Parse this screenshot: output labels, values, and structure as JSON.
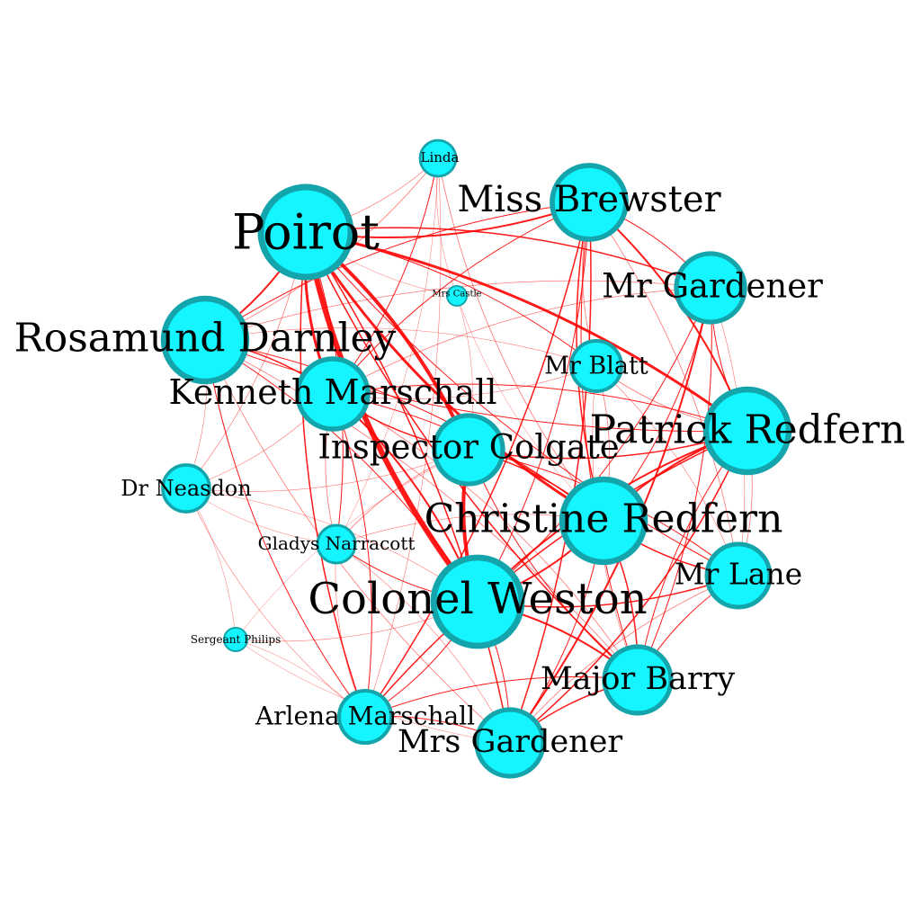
{
  "colors": {
    "background": "#ffffff",
    "node_fill": "#14f5ff",
    "node_stroke": "#13a5ab",
    "edge": "#ff0000",
    "label": "#000000"
  },
  "nodes": [
    {
      "id": "poirot",
      "label": "Poirot"
    },
    {
      "id": "miss-brewster",
      "label": "Miss Brewster"
    },
    {
      "id": "linda",
      "label": "Linda"
    },
    {
      "id": "mr-gardener",
      "label": "Mr Gardener"
    },
    {
      "id": "mrs-castle",
      "label": "Mrs Castle"
    },
    {
      "id": "rosamund-darnley",
      "label": "Rosamund Darnley"
    },
    {
      "id": "mr-blatt",
      "label": "Mr Blatt"
    },
    {
      "id": "kenneth-marschall",
      "label": "Kenneth Marschall"
    },
    {
      "id": "patrick-redfern",
      "label": "Patrick Redfern"
    },
    {
      "id": "inspector-colgate",
      "label": "Inspector Colgate"
    },
    {
      "id": "dr-neasdon",
      "label": "Dr Neasdon"
    },
    {
      "id": "christine-redfern",
      "label": "Christine Redfern"
    },
    {
      "id": "gladys-narracott",
      "label": "Gladys Narracott"
    },
    {
      "id": "mr-lane",
      "label": "Mr Lane"
    },
    {
      "id": "colonel-weston",
      "label": "Colonel Weston"
    },
    {
      "id": "sergeant-philips",
      "label": "Sergeant Philips"
    },
    {
      "id": "major-barry",
      "label": "Major Barry"
    },
    {
      "id": "arlena-marschall",
      "label": "Arlena Marschall"
    },
    {
      "id": "mrs-gardener",
      "label": "Mrs Gardener"
    }
  ],
  "edges": [
    {
      "source": "poirot",
      "target": "colonel-weston",
      "weight": 6
    },
    {
      "source": "poirot",
      "target": "inspector-colgate",
      "weight": 4
    },
    {
      "source": "poirot",
      "target": "christine-redfern",
      "weight": 3
    },
    {
      "source": "poirot",
      "target": "patrick-redfern",
      "weight": 3
    },
    {
      "source": "poirot",
      "target": "kenneth-marschall",
      "weight": 3
    },
    {
      "source": "poirot",
      "target": "rosamund-darnley",
      "weight": 2
    },
    {
      "source": "poirot",
      "target": "miss-brewster",
      "weight": 2
    },
    {
      "source": "poirot",
      "target": "mr-gardener",
      "weight": 1.5
    },
    {
      "source": "poirot",
      "target": "major-barry",
      "weight": 1.5
    },
    {
      "source": "poirot",
      "target": "mrs-gardener",
      "weight": 1.5
    },
    {
      "source": "poirot",
      "target": "arlena-marschall",
      "weight": 1.5
    },
    {
      "source": "poirot",
      "target": "gladys-narracott",
      "weight": 1
    },
    {
      "source": "poirot",
      "target": "mr-lane",
      "weight": 1
    },
    {
      "source": "poirot",
      "target": "mr-blatt",
      "weight": 1
    },
    {
      "source": "poirot",
      "target": "linda",
      "weight": 0.7
    },
    {
      "source": "poirot",
      "target": "dr-neasdon",
      "weight": 0.7
    },
    {
      "source": "poirot",
      "target": "mrs-castle",
      "weight": 0.5
    },
    {
      "source": "colonel-weston",
      "target": "inspector-colgate",
      "weight": 4
    },
    {
      "source": "colonel-weston",
      "target": "christine-redfern",
      "weight": 2
    },
    {
      "source": "colonel-weston",
      "target": "patrick-redfern",
      "weight": 2
    },
    {
      "source": "colonel-weston",
      "target": "kenneth-marschall",
      "weight": 2
    },
    {
      "source": "colonel-weston",
      "target": "major-barry",
      "weight": 2
    },
    {
      "source": "colonel-weston",
      "target": "mr-lane",
      "weight": 1.5
    },
    {
      "source": "colonel-weston",
      "target": "gladys-narracott",
      "weight": 1
    },
    {
      "source": "colonel-weston",
      "target": "mr-gardener",
      "weight": 1
    },
    {
      "source": "colonel-weston",
      "target": "mrs-gardener",
      "weight": 1
    },
    {
      "source": "colonel-weston",
      "target": "miss-brewster",
      "weight": 1
    },
    {
      "source": "colonel-weston",
      "target": "sergeant-philips",
      "weight": 0.6
    },
    {
      "source": "colonel-weston",
      "target": "dr-neasdon",
      "weight": 0.6
    },
    {
      "source": "colonel-weston",
      "target": "arlena-marschall",
      "weight": 1
    },
    {
      "source": "colonel-weston",
      "target": "rosamund-darnley",
      "weight": 1
    },
    {
      "source": "inspector-colgate",
      "target": "christine-redfern",
      "weight": 1.5
    },
    {
      "source": "inspector-colgate",
      "target": "patrick-redfern",
      "weight": 1.5
    },
    {
      "source": "inspector-colgate",
      "target": "kenneth-marschall",
      "weight": 1.5
    },
    {
      "source": "inspector-colgate",
      "target": "major-barry",
      "weight": 1
    },
    {
      "source": "inspector-colgate",
      "target": "mr-lane",
      "weight": 1
    },
    {
      "source": "inspector-colgate",
      "target": "gladys-narracott",
      "weight": 0.8
    },
    {
      "source": "inspector-colgate",
      "target": "dr-neasdon",
      "weight": 0.6
    },
    {
      "source": "inspector-colgate",
      "target": "sergeant-philips",
      "weight": 0.5
    },
    {
      "source": "miss-brewster",
      "target": "patrick-redfern",
      "weight": 2
    },
    {
      "source": "miss-brewster",
      "target": "christine-redfern",
      "weight": 1.5
    },
    {
      "source": "miss-brewster",
      "target": "mr-gardener",
      "weight": 1
    },
    {
      "source": "miss-brewster",
      "target": "rosamund-darnley",
      "weight": 1
    },
    {
      "source": "miss-brewster",
      "target": "mrs-gardener",
      "weight": 1.5
    },
    {
      "source": "miss-brewster",
      "target": "kenneth-marschall",
      "weight": 1
    },
    {
      "source": "miss-brewster",
      "target": "arlena-marschall",
      "weight": 1.5
    },
    {
      "source": "miss-brewster",
      "target": "major-barry",
      "weight": 1
    },
    {
      "source": "miss-brewster",
      "target": "mr-lane",
      "weight": 0.8
    },
    {
      "source": "miss-brewster",
      "target": "mr-blatt",
      "weight": 0.8
    },
    {
      "source": "mr-gardener",
      "target": "mrs-gardener",
      "weight": 2
    },
    {
      "source": "mr-gardener",
      "target": "patrick-redfern",
      "weight": 1
    },
    {
      "source": "mr-gardener",
      "target": "christine-redfern",
      "weight": 1
    },
    {
      "source": "mr-gardener",
      "target": "rosamund-darnley",
      "weight": 0.8
    },
    {
      "source": "mr-gardener",
      "target": "major-barry",
      "weight": 1
    },
    {
      "source": "mr-gardener",
      "target": "kenneth-marschall",
      "weight": 0.8
    },
    {
      "source": "mr-gardener",
      "target": "mr-lane",
      "weight": 0.6
    },
    {
      "source": "patrick-redfern",
      "target": "christine-redfern",
      "weight": 2
    },
    {
      "source": "patrick-redfern",
      "target": "rosamund-darnley",
      "weight": 1
    },
    {
      "source": "patrick-redfern",
      "target": "major-barry",
      "weight": 1
    },
    {
      "source": "patrick-redfern",
      "target": "mrs-gardener",
      "weight": 1.5
    },
    {
      "source": "patrick-redfern",
      "target": "arlena-marschall",
      "weight": 1.5
    },
    {
      "source": "patrick-redfern",
      "target": "mr-lane",
      "weight": 0.8
    },
    {
      "source": "patrick-redfern",
      "target": "kenneth-marschall",
      "weight": 1
    },
    {
      "source": "patrick-redfern",
      "target": "mr-blatt",
      "weight": 0.8
    },
    {
      "source": "christine-redfern",
      "target": "rosamund-darnley",
      "weight": 1
    },
    {
      "source": "christine-redfern",
      "target": "major-barry",
      "weight": 1.5
    },
    {
      "source": "christine-redfern",
      "target": "mr-lane",
      "weight": 1.5
    },
    {
      "source": "christine-redfern",
      "target": "mrs-gardener",
      "weight": 1
    },
    {
      "source": "christine-redfern",
      "target": "kenneth-marschall",
      "weight": 1
    },
    {
      "source": "christine-redfern",
      "target": "linda",
      "weight": 0.8
    },
    {
      "source": "christine-redfern",
      "target": "mr-blatt",
      "weight": 0.8
    },
    {
      "source": "rosamund-darnley",
      "target": "kenneth-marschall",
      "weight": 1.5
    },
    {
      "source": "rosamund-darnley",
      "target": "linda",
      "weight": 0.8
    },
    {
      "source": "rosamund-darnley",
      "target": "dr-neasdon",
      "weight": 0.6
    },
    {
      "source": "rosamund-darnley",
      "target": "arlena-marschall",
      "weight": 1
    },
    {
      "source": "rosamund-darnley",
      "target": "major-barry",
      "weight": 0.8
    },
    {
      "source": "rosamund-darnley",
      "target": "mrs-gardener",
      "weight": 0.8
    },
    {
      "source": "rosamund-darnley",
      "target": "mr-blatt",
      "weight": 0.6
    },
    {
      "source": "kenneth-marschall",
      "target": "linda",
      "weight": 1
    },
    {
      "source": "kenneth-marschall",
      "target": "arlena-marschall",
      "weight": 1
    },
    {
      "source": "kenneth-marschall",
      "target": "gladys-narracott",
      "weight": 0.8
    },
    {
      "source": "kenneth-marschall",
      "target": "major-barry",
      "weight": 0.8
    },
    {
      "source": "kenneth-marschall",
      "target": "mr-blatt",
      "weight": 0.6
    },
    {
      "source": "kenneth-marschall",
      "target": "dr-neasdon",
      "weight": 0.6
    },
    {
      "source": "major-barry",
      "target": "mrs-gardener",
      "weight": 1.5
    },
    {
      "source": "major-barry",
      "target": "mr-lane",
      "weight": 1
    },
    {
      "source": "major-barry",
      "target": "arlena-marschall",
      "weight": 1
    },
    {
      "source": "major-barry",
      "target": "mr-blatt",
      "weight": 0.6
    },
    {
      "source": "mrs-gardener",
      "target": "arlena-marschall",
      "weight": 1
    },
    {
      "source": "mrs-gardener",
      "target": "mr-lane",
      "weight": 0.8
    },
    {
      "source": "mrs-gardener",
      "target": "gladys-narracott",
      "weight": 0.6
    },
    {
      "source": "mrs-gardener",
      "target": "sergeant-philips",
      "weight": 0.5
    },
    {
      "source": "mr-lane",
      "target": "mr-blatt",
      "weight": 0.6
    },
    {
      "source": "linda",
      "target": "arlena-marschall",
      "weight": 0.6
    },
    {
      "source": "linda",
      "target": "mrs-castle",
      "weight": 0.5
    },
    {
      "source": "linda",
      "target": "gladys-narracott",
      "weight": 0.5
    },
    {
      "source": "dr-neasdon",
      "target": "arlena-marschall",
      "weight": 0.6
    },
    {
      "source": "dr-neasdon",
      "target": "sergeant-philips",
      "weight": 0.5
    },
    {
      "source": "dr-neasdon",
      "target": "gladys-narracott",
      "weight": 0.5
    },
    {
      "source": "sergeant-philips",
      "target": "arlena-marschall",
      "weight": 0.5
    },
    {
      "source": "mrs-castle",
      "target": "christine-redfern",
      "weight": 0.5
    },
    {
      "source": "mrs-castle",
      "target": "inspector-colgate",
      "weight": 0.5
    },
    {
      "source": "gladys-narracott",
      "target": "arlena-marschall",
      "weight": 0.6
    },
    {
      "source": "gladys-narracott",
      "target": "christine-redfern",
      "weight": 0.6
    }
  ]
}
